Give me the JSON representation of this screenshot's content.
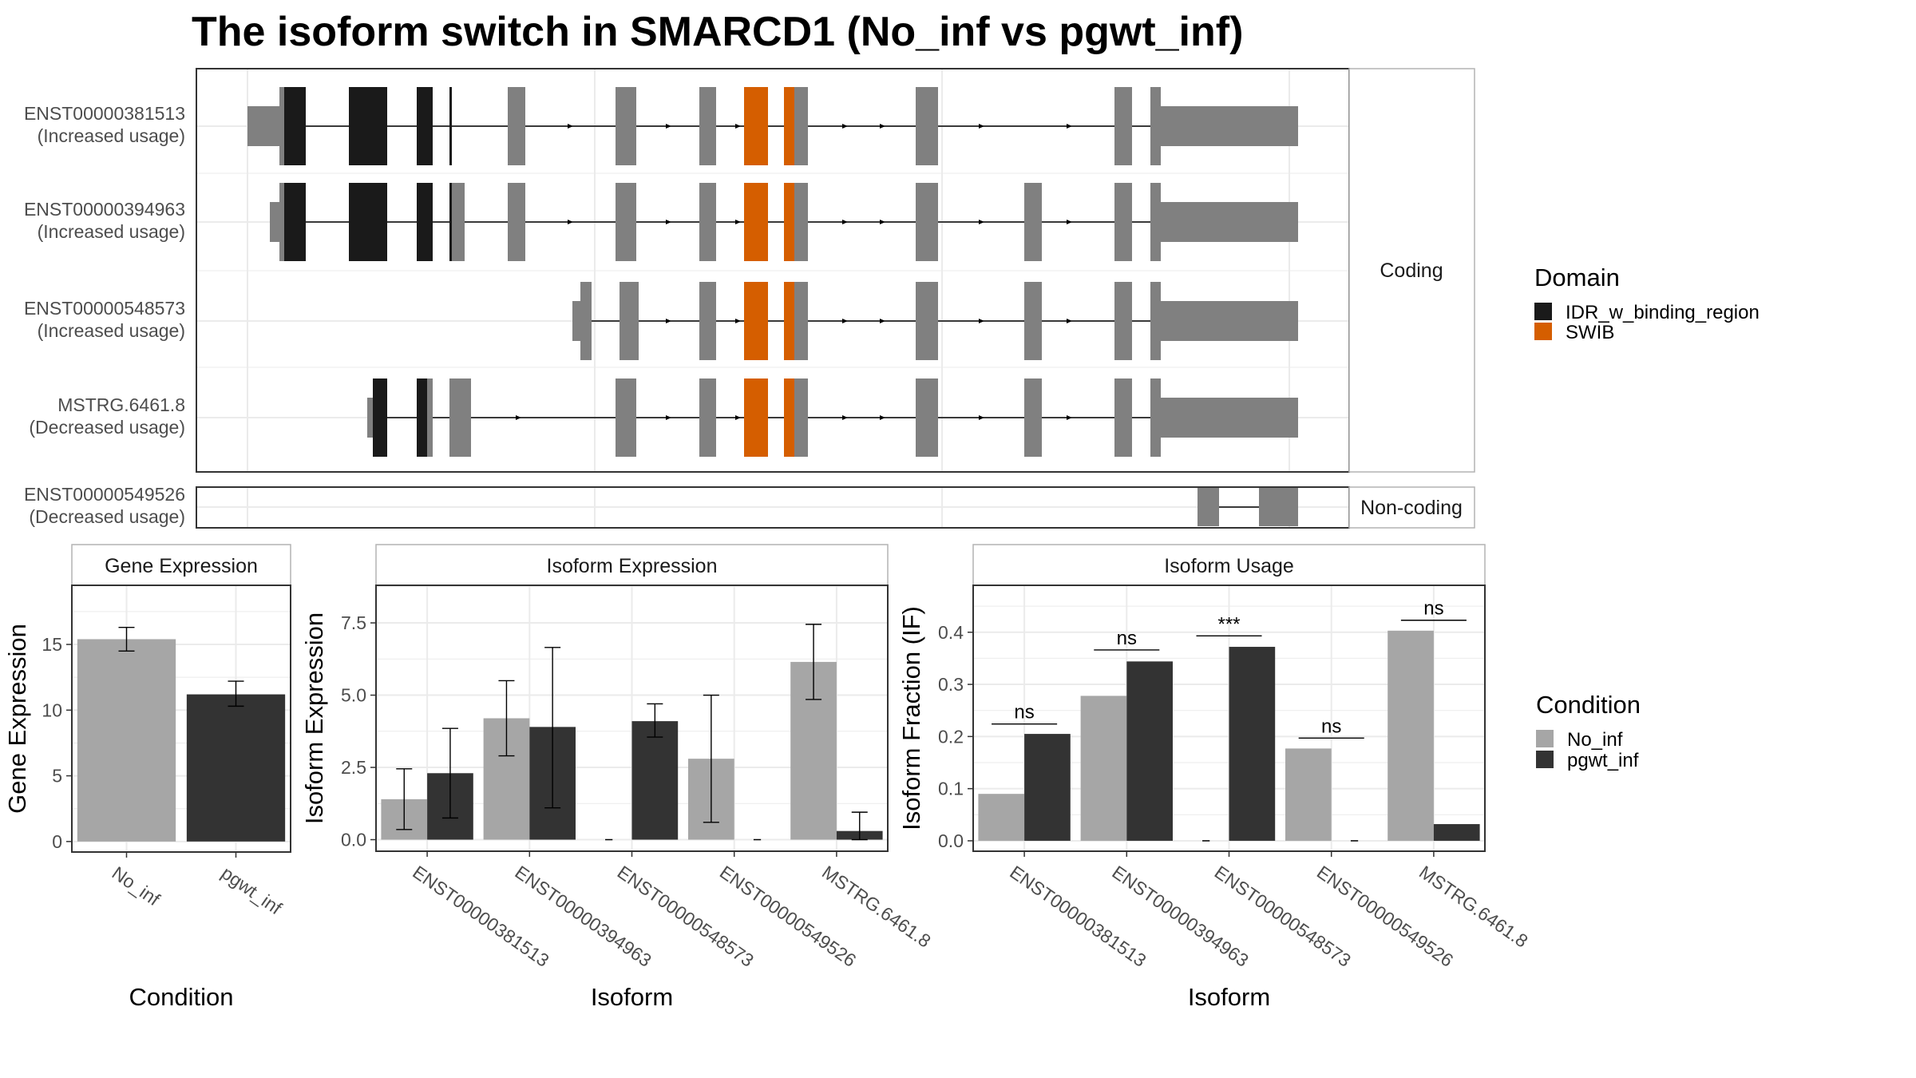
{
  "title": "The isoform switch in SMARCD1 (No_inf vs pgwt_inf)",
  "colors": {
    "exon": "#808080",
    "idr": "#1a1a1a",
    "swib": "#d55e00",
    "no_inf": "#a6a6a6",
    "pgwt_inf": "#333333",
    "grid": "#ebebeb",
    "strip": "#ffffff"
  },
  "facets": {
    "coding": "Coding",
    "noncoding": "Non-coding"
  },
  "transcripts": [
    {
      "name": "ENST00000381513",
      "usage": "(Increased usage)",
      "group": "coding"
    },
    {
      "name": "ENST00000394963",
      "usage": "(Increased usage)",
      "group": "coding"
    },
    {
      "name": "ENST00000548573",
      "usage": "(Increased usage)",
      "group": "coding"
    },
    {
      "name": "MSTRG.6461.8",
      "usage": "(Decreased usage)",
      "group": "coding"
    },
    {
      "name": "ENST00000549526",
      "usage": "(Decreased usage)",
      "group": "noncoding"
    }
  ],
  "legends": {
    "domain": {
      "title": "Domain",
      "items": [
        {
          "label": "IDR_w_binding_region",
          "color": "#1a1a1a"
        },
        {
          "label": "SWIB",
          "color": "#d55e00"
        }
      ]
    },
    "condition": {
      "title": "Condition",
      "items": [
        {
          "label": "No_inf",
          "color": "#a6a6a6"
        },
        {
          "label": "pgwt_inf",
          "color": "#333333"
        }
      ]
    }
  },
  "chart_data": [
    {
      "type": "bar",
      "title": "Gene Expression",
      "xlabel": "Condition",
      "ylabel": "Gene Expression",
      "categories": [
        "No_inf",
        "pgwt_inf"
      ],
      "values": [
        15.4,
        11.2
      ],
      "error_low": [
        14.5,
        10.3
      ],
      "error_high": [
        16.3,
        12.2
      ],
      "ylim": [
        -0.8,
        19.5
      ],
      "yticks": [
        0,
        5,
        10,
        15
      ],
      "tick_labels": [
        "0",
        "5",
        "10",
        "15"
      ]
    },
    {
      "type": "bar",
      "title": "Isoform Expression",
      "xlabel": "Isoform",
      "ylabel": "Isoform Expression",
      "categories": [
        "ENST00000381513",
        "ENST00000394963",
        "ENST00000548573",
        "ENST00000549526",
        "MSTRG.6461.8"
      ],
      "series": [
        {
          "name": "No_inf",
          "values": [
            1.4,
            4.2,
            0.0,
            2.8,
            6.15
          ],
          "error_low": [
            0.35,
            2.9,
            0.0,
            0.6,
            4.85
          ],
          "error_high": [
            2.45,
            5.5,
            0.0,
            5.0,
            7.45
          ]
        },
        {
          "name": "pgwt_inf",
          "values": [
            2.3,
            3.9,
            4.1,
            0.0,
            0.3
          ],
          "error_low": [
            0.75,
            1.1,
            3.55,
            0.0,
            0.0
          ],
          "error_high": [
            3.85,
            6.65,
            4.7,
            0.0,
            0.95
          ]
        }
      ],
      "ylim": [
        -0.4,
        8.8
      ],
      "yticks": [
        0,
        2.5,
        5,
        7.5
      ],
      "tick_labels": [
        "0.0",
        "2.5",
        "5.0",
        "7.5"
      ]
    },
    {
      "type": "bar",
      "title": "Isoform Usage",
      "xlabel": "Isoform",
      "ylabel": "Isoform Fraction (IF)",
      "categories": [
        "ENST00000381513",
        "ENST00000394963",
        "ENST00000548573",
        "ENST00000549526",
        "MSTRG.6461.8"
      ],
      "series": [
        {
          "name": "No_inf",
          "values": [
            0.09,
            0.278,
            0.0,
            0.177,
            0.403
          ]
        },
        {
          "name": "pgwt_inf",
          "values": [
            0.205,
            0.344,
            0.372,
            0.0,
            0.032
          ]
        }
      ],
      "significance": [
        "ns",
        "ns",
        "***",
        "ns",
        "ns"
      ],
      "sig_y": [
        0.224,
        0.366,
        0.393,
        0.197,
        0.423
      ],
      "ylim": [
        -0.02,
        0.49
      ],
      "yticks": [
        0,
        0.1,
        0.2,
        0.3,
        0.4
      ],
      "tick_labels": [
        "0.0",
        "0.1",
        "0.2",
        "0.3",
        "0.4"
      ]
    }
  ]
}
